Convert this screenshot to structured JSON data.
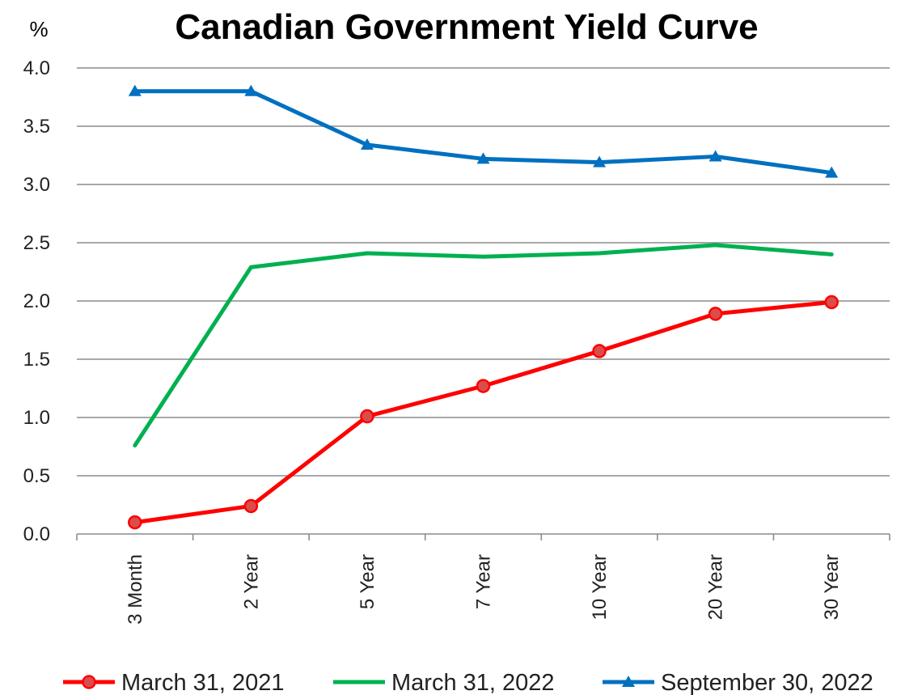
{
  "chart_data": {
    "type": "line",
    "title": "Canadian Government Yield Curve",
    "ylabel": "%",
    "xlabel": "",
    "ylim": [
      0,
      4.0
    ],
    "yticks": [
      "0.0",
      "0.5",
      "1.0",
      "1.5",
      "2.0",
      "2.5",
      "3.0",
      "3.5",
      "4.0"
    ],
    "categories": [
      "3 Month",
      "2 Year",
      "5 Year",
      "7 Year",
      "10 Year",
      "20 Year",
      "30 Year"
    ],
    "grid": true,
    "legend_position": "bottom",
    "series": [
      {
        "name": "March 31, 2021",
        "color": "#ff0000",
        "marker": "circle",
        "values": [
          0.1,
          0.24,
          1.01,
          1.27,
          1.57,
          1.89,
          1.99
        ]
      },
      {
        "name": "March 31, 2022",
        "color": "#00b050",
        "marker": "none",
        "values": [
          0.76,
          2.29,
          2.41,
          2.38,
          2.41,
          2.48,
          2.4
        ]
      },
      {
        "name": "September 30, 2022",
        "color": "#0070c0",
        "marker": "triangle",
        "values": [
          3.8,
          3.8,
          3.34,
          3.22,
          3.19,
          3.24,
          3.1
        ]
      }
    ]
  }
}
